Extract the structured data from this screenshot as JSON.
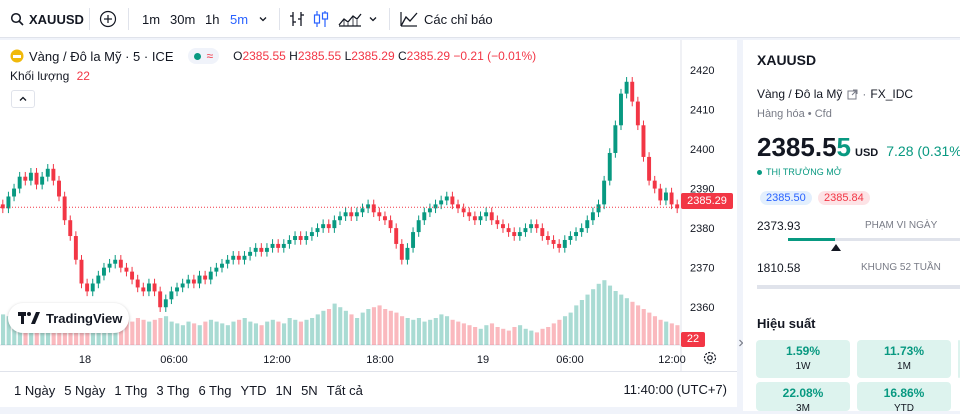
{
  "toolbar": {
    "symbol": "XAUUSD",
    "intervals": [
      "1m",
      "30m",
      "1h",
      "5m"
    ],
    "indicators_label": "Các chỉ báo"
  },
  "legend": {
    "name": "Vàng / Đô la Mỹ · 5 · ICE",
    "open_label": "O",
    "open": "2385.55",
    "high_label": "H",
    "high": "2385.55",
    "low_label": "L",
    "low": "2385.29",
    "close_label": "C",
    "close": "2385.29",
    "change": "−0.21 (−0.01%)",
    "volume_label": "Khối lượng",
    "volume": "22"
  },
  "price_tag": "2385.29",
  "volume_tag": "22",
  "logo_text": "TradingView",
  "ranges": [
    "1 Ngày",
    "5 Ngày",
    "1 Thg",
    "3 Thg",
    "6 Thg",
    "YTD",
    "1N",
    "5N",
    "Tất cả"
  ],
  "clock": "11:40:00 (UTC+7)",
  "info": {
    "symbol": "XAUUSD",
    "full_name": "Vàng / Đô la Mỹ",
    "exchange": "FX_IDC",
    "category": "Hàng hóa",
    "type": "Cfd",
    "price_main": "2385.5",
    "price_last": "5",
    "currency": "USD",
    "change": "7.28 (0.31%)",
    "market_status": "THỊ TRƯỜNG MỞ",
    "bid": "2385.50",
    "ask": "2385.84",
    "day_low": "2373.93",
    "day_range_label": "PHẠM VI NGÀY",
    "year_low": "1810.58",
    "year_range_label": "KHUNG 52 TUẦN",
    "perf_title": "Hiệu suất",
    "perf": [
      {
        "value": "1.59%",
        "period": "1W"
      },
      {
        "value": "11.73%",
        "period": "1M"
      },
      {
        "value": "22.08%",
        "period": "3M"
      },
      {
        "value": "16.86%",
        "period": "YTD"
      }
    ]
  },
  "colors": {
    "up": "#089981",
    "down": "#f23645",
    "accent": "#2962ff"
  },
  "chart_data": {
    "type": "candlestick",
    "y_ticks": [
      2420,
      2410,
      2400,
      2390,
      2380,
      2370,
      2360
    ],
    "x_ticks": [
      "18",
      "06:00",
      "12:00",
      "18:00",
      "19",
      "06:00",
      "12:00"
    ],
    "ylim": [
      2355,
      2422
    ],
    "close": [
      2385,
      2388,
      2390,
      2393,
      2392,
      2394,
      2391,
      2393,
      2395,
      2392,
      2388,
      2382,
      2378,
      2372,
      2366,
      2364,
      2366,
      2368,
      2370,
      2371,
      2372,
      2370,
      2369,
      2367,
      2365,
      2364,
      2366,
      2364,
      2360,
      2362,
      2364,
      2365,
      2366,
      2367,
      2366,
      2368,
      2367,
      2369,
      2370,
      2371,
      2372,
      2373,
      2372,
      2373,
      2374,
      2375,
      2374,
      2375,
      2376,
      2375,
      2376,
      2377,
      2378,
      2377,
      2378,
      2379,
      2380,
      2381,
      2380,
      2382,
      2383,
      2384,
      2383,
      2384,
      2385,
      2386,
      2384,
      2383,
      2382,
      2380,
      2376,
      2372,
      2375,
      2379,
      2382,
      2384,
      2385,
      2386,
      2387,
      2388,
      2386,
      2385,
      2384,
      2383,
      2382,
      2383,
      2384,
      2382,
      2381,
      2380,
      2379,
      2378,
      2379,
      2380,
      2381,
      2380,
      2378,
      2377,
      2376,
      2375,
      2377,
      2378,
      2379,
      2380,
      2382,
      2384,
      2386,
      2392,
      2399,
      2406,
      2414,
      2417,
      2412,
      2406,
      2398,
      2392,
      2390,
      2387,
      2389,
      2386,
      2385
    ],
    "volume": [
      34,
      32,
      30,
      28,
      26,
      24,
      28,
      26,
      30,
      32,
      38,
      42,
      44,
      40,
      32,
      30,
      28,
      26,
      30,
      28,
      26,
      24,
      28,
      26,
      30,
      28,
      26,
      28,
      30,
      32,
      26,
      24,
      22,
      26,
      24,
      22,
      26,
      28,
      26,
      24,
      22,
      26,
      28,
      30,
      26,
      24,
      22,
      26,
      28,
      26,
      24,
      30,
      28,
      26,
      28,
      30,
      34,
      38,
      40,
      46,
      42,
      38,
      34,
      30,
      36,
      40,
      42,
      44,
      40,
      38,
      36,
      32,
      30,
      28,
      30,
      26,
      28,
      30,
      34,
      32,
      28,
      26,
      24,
      22,
      20,
      18,
      22,
      24,
      20,
      18,
      16,
      20,
      22,
      18,
      16,
      14,
      18,
      20,
      24,
      28,
      32,
      36,
      44,
      50,
      56,
      62,
      68,
      72,
      66,
      60,
      56,
      52,
      48,
      44,
      40,
      36,
      32,
      28,
      26,
      24,
      22
    ]
  }
}
